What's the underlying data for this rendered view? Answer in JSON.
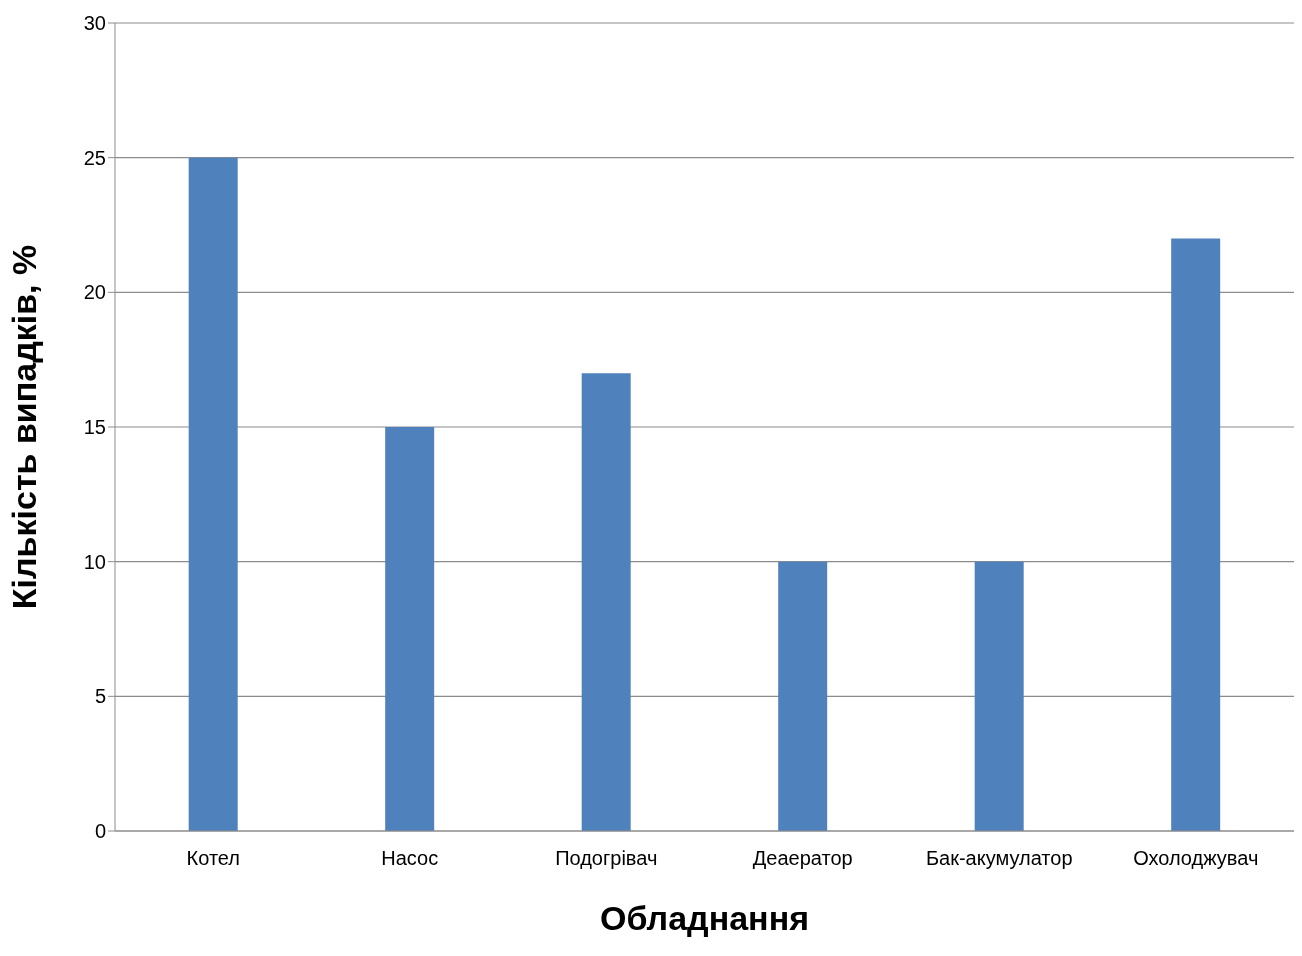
{
  "chart_data": {
    "type": "bar",
    "xlabel": "Обладнання",
    "ylabel": "Кількість випадків, %",
    "categories": [
      "Котел",
      "Насос",
      "Подогрівач",
      "Деаератор",
      "Бак-акумулатор",
      "Охолоджувач"
    ],
    "values": [
      25,
      15,
      17,
      10,
      10,
      22
    ],
    "color": "#4f81bd",
    "ylim": [
      0,
      30
    ],
    "yticks": [
      0,
      5,
      10,
      15,
      20,
      25,
      30
    ],
    "grid": "y"
  }
}
